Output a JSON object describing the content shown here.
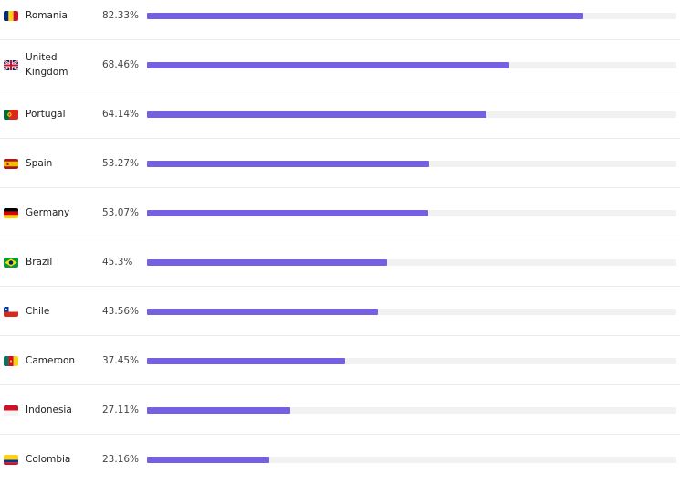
{
  "colors": {
    "bar_fill": "#7460e1",
    "bar_track": "#f1f1f1"
  },
  "rows": [
    {
      "country": "Romania",
      "percent_label": "82.33%",
      "value": 82.33,
      "flag_icon": "romania-flag-icon"
    },
    {
      "country": "United Kingdom",
      "percent_label": "68.46%",
      "value": 68.46,
      "flag_icon": "united-kingdom-flag-icon"
    },
    {
      "country": "Portugal",
      "percent_label": "64.14%",
      "value": 64.14,
      "flag_icon": "portugal-flag-icon"
    },
    {
      "country": "Spain",
      "percent_label": "53.27%",
      "value": 53.27,
      "flag_icon": "spain-flag-icon"
    },
    {
      "country": "Germany",
      "percent_label": "53.07%",
      "value": 53.07,
      "flag_icon": "germany-flag-icon"
    },
    {
      "country": "Brazil",
      "percent_label": "45.3%",
      "value": 45.3,
      "flag_icon": "brazil-flag-icon"
    },
    {
      "country": "Chile",
      "percent_label": "43.56%",
      "value": 43.56,
      "flag_icon": "chile-flag-icon"
    },
    {
      "country": "Cameroon",
      "percent_label": "37.45%",
      "value": 37.45,
      "flag_icon": "cameroon-flag-icon"
    },
    {
      "country": "Indonesia",
      "percent_label": "27.11%",
      "value": 27.11,
      "flag_icon": "indonesia-flag-icon"
    },
    {
      "country": "Colombia",
      "percent_label": "23.16%",
      "value": 23.16,
      "flag_icon": "colombia-flag-icon"
    }
  ]
}
